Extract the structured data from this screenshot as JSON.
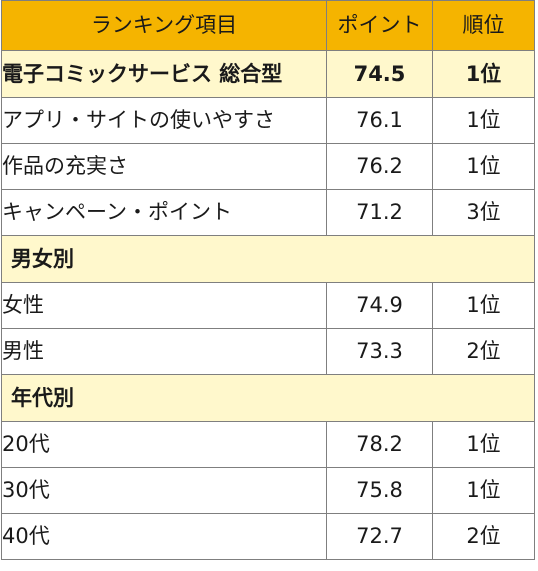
{
  "header": {
    "item": "ランキング項目",
    "point": "ポイント",
    "rank": "順位"
  },
  "overall": {
    "item": "電子コミックサービス 総合型",
    "point": "74.5",
    "rank": "1位"
  },
  "items": [
    {
      "item": "アプリ・サイトの使いやすさ",
      "point": "76.1",
      "rank": "1位"
    },
    {
      "item": "作品の充実さ",
      "point": "76.2",
      "rank": "1位"
    },
    {
      "item": "キャンペーン・ポイント",
      "point": "71.2",
      "rank": "3位"
    }
  ],
  "gender": {
    "label": "男女別",
    "rows": [
      {
        "item": "女性",
        "point": "74.9",
        "rank": "1位"
      },
      {
        "item": "男性",
        "point": "73.3",
        "rank": "2位"
      }
    ]
  },
  "age": {
    "label": "年代別",
    "rows": [
      {
        "item": "20代",
        "point": "78.2",
        "rank": "1位"
      },
      {
        "item": "30代",
        "point": "75.8",
        "rank": "1位"
      },
      {
        "item": "40代",
        "point": "72.7",
        "rank": "2位"
      }
    ]
  },
  "colors": {
    "header_bg": "#f5b400",
    "highlight_bg": "#fff8cc",
    "border": "#7f7f7f"
  }
}
